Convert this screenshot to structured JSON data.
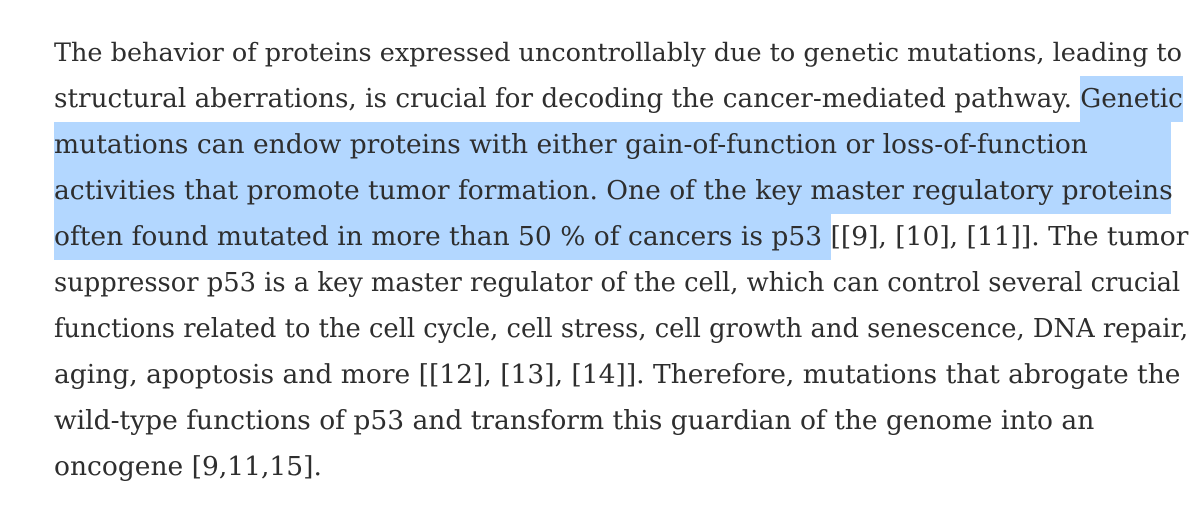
{
  "paragraph": {
    "lines": [
      {
        "before": "The behavior of proteins expressed uncontrollably due to genetic mutations, leading to",
        "selected": "",
        "after": ""
      },
      {
        "before": "structural aberrations, is crucial for decoding the cancer-mediated pathway. ",
        "selected": "Genetic",
        "after": ""
      },
      {
        "before": "",
        "selected": "mutations can endow proteins with either gain-of-function or loss-of-function",
        "after": ""
      },
      {
        "before": "",
        "selected": "activities that promote tumor formation. One of the key master regulatory proteins",
        "after": ""
      },
      {
        "before": "",
        "selected": "often found mutated in more than 50 % of cancers is p53 ",
        "after": "[[9], [10], [11]]. The tumor"
      },
      {
        "before": "suppressor p53 is a key master regulator of the cell, which can control several crucial",
        "selected": "",
        "after": ""
      },
      {
        "before": "functions related to the cell cycle, cell stress, cell growth and senescence, DNA repair,",
        "selected": "",
        "after": ""
      },
      {
        "before": "aging, apoptosis and more [[12], [13], [14]]. Therefore, mutations that abrogate the",
        "selected": "",
        "after": ""
      },
      {
        "before": "wild-type functions of p53 and transform this guardian of the genome into an",
        "selected": "",
        "after": ""
      },
      {
        "before": "oncogene [9,11,15].",
        "selected": "",
        "after": ""
      }
    ]
  },
  "colors": {
    "text": "#2e2e2e",
    "selection": "#b3d7ff",
    "background": "#ffffff"
  }
}
